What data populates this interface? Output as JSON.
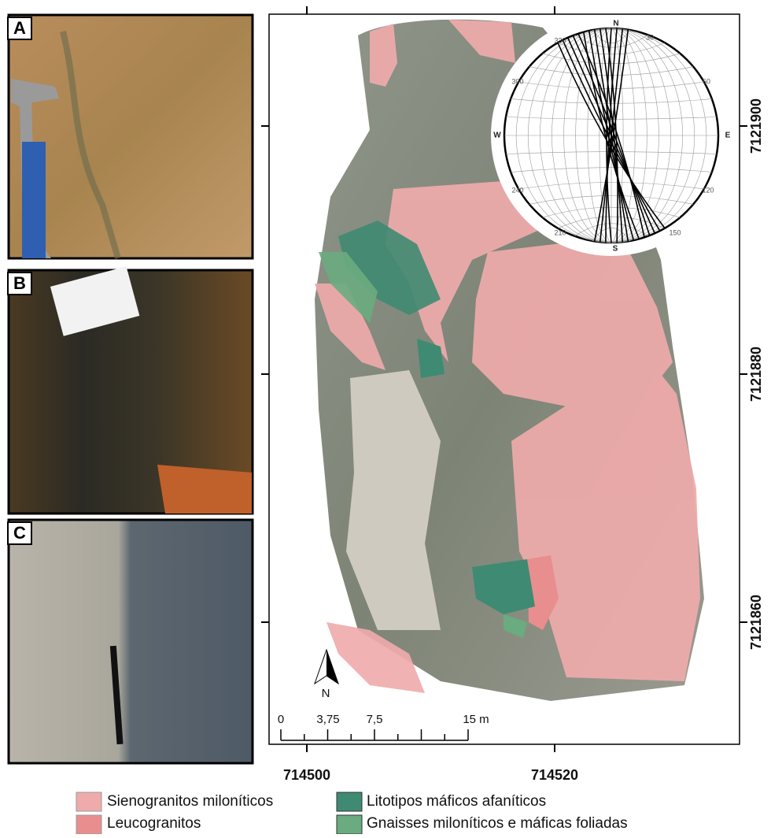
{
  "panels": {
    "a": "A",
    "b": "B",
    "c": "C"
  },
  "map": {
    "x_labels": [
      "714500",
      "714520"
    ],
    "y_labels": [
      "7121900",
      "7121880",
      "7121860"
    ],
    "north": "N",
    "scale": {
      "labels": [
        "0",
        "3,75",
        "7,5",
        "15 m"
      ]
    }
  },
  "stereonet": {
    "labels": {
      "n": "N",
      "e": "E",
      "s": "S",
      "w": "W",
      "d30": "30",
      "d60": "60",
      "d120": "120",
      "d150": "150",
      "d210": "210",
      "d240": "240",
      "d300": "300",
      "d330": "330"
    }
  },
  "legend": [
    "Sienogranitos miloníticos",
    "Leucogranitos",
    "Litotipos máficos afaníticos",
    "Gnaisses miloníticos e máficas foliadas"
  ]
}
